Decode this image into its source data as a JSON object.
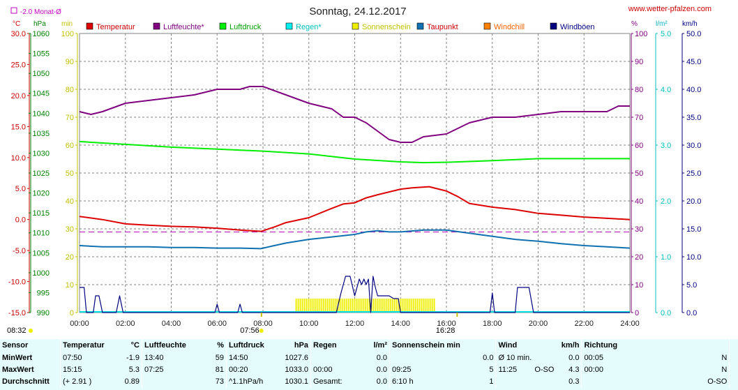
{
  "header": {
    "title": "Sonntag, 24.12.2017",
    "site": "www.wetter-pfalzen.com",
    "monat_legend": "-2.0 Monat-Ø",
    "unit_c": "°C",
    "unit_hpa": "hPa",
    "unit_min": "min",
    "unit_pct": "%",
    "unit_lm2": "l/m²",
    "unit_kmh": "km/h"
  },
  "legend": [
    {
      "label": "Temperatur",
      "color": "#dd0000"
    },
    {
      "label": "Luftfeuchte*",
      "color": "#800080"
    },
    {
      "label": "Luftdruck",
      "color": "#00ee00"
    },
    {
      "label": "Regen*",
      "color": "#00eeee"
    },
    {
      "label": "Sonnenschein",
      "color": "#eeee00"
    },
    {
      "label": "Taupunkt",
      "color": "#1070b0"
    },
    {
      "label": "Windchill",
      "color": "#ff8000"
    },
    {
      "label": "Windböen",
      "color": "#000080"
    }
  ],
  "markers": {
    "sunrise": "08:32",
    "min_temp_time": "07:56",
    "sun_end": "16:28"
  },
  "chart_data": {
    "type": "line",
    "title": "Sonntag, 24.12.2017",
    "x_ticks": [
      "00:00",
      "02:00",
      "04:00",
      "06:00",
      "08:00",
      "10:00",
      "12:00",
      "14:00",
      "16:00",
      "18:00",
      "20:00",
      "22:00",
      "24:00"
    ],
    "x_range_hours": [
      0,
      24
    ],
    "axes": {
      "temp_c": {
        "range": [
          -15,
          30
        ],
        "ticks": [
          "30.0",
          "25.0",
          "20.0",
          "15.0",
          "10.0",
          "5.0",
          "0.0",
          "-5.0",
          "-10.0",
          "-15.0"
        ]
      },
      "pressure_hpa": {
        "range": [
          990,
          1060
        ],
        "ticks": [
          "1060",
          "1055",
          "1050",
          "1045",
          "1040",
          "1035",
          "1030",
          "1025",
          "1020",
          "1015",
          "1010",
          "1005",
          "1000",
          "995",
          "990"
        ]
      },
      "sun_min": {
        "range": [
          0,
          100
        ],
        "ticks": [
          "100",
          "90",
          "80",
          "70",
          "60",
          "50",
          "40",
          "30",
          "20",
          "10",
          "0"
        ]
      },
      "humidity_pct": {
        "range": [
          0,
          100
        ],
        "ticks": [
          "100",
          "90",
          "80",
          "70",
          "60",
          "50",
          "40",
          "30",
          "20",
          "10",
          "0"
        ]
      },
      "rain_lm2": {
        "range": [
          0,
          5
        ],
        "ticks": [
          "5.0",
          "4.0",
          "3.0",
          "2.0",
          "1.0",
          "0.0"
        ]
      },
      "wind_kmh": {
        "range": [
          0,
          50
        ],
        "ticks": [
          "50.0",
          "45.0",
          "40.0",
          "35.0",
          "30.0",
          "25.0",
          "20.0",
          "15.0",
          "10.0",
          "5.0",
          "0.0"
        ]
      }
    },
    "monthly_avg_temp": -2.0,
    "series": [
      {
        "name": "Temperatur",
        "axis": "temp_c",
        "color": "#dd0000",
        "x": [
          0,
          1,
          2,
          3,
          4,
          5,
          6,
          7,
          7.93,
          8.5,
          9,
          10,
          11,
          11.5,
          12,
          12.5,
          13,
          14,
          14.5,
          15.25,
          16,
          16.5,
          17,
          18,
          19,
          20,
          21,
          22,
          23,
          24
        ],
        "y": [
          0.5,
          0,
          -0.7,
          -0.9,
          -1.1,
          -1.2,
          -1.4,
          -1.7,
          -1.9,
          -1.2,
          -0.5,
          0.3,
          1.8,
          2.5,
          2.7,
          3.5,
          4.0,
          4.9,
          5.1,
          5.3,
          4.6,
          3.7,
          2.6,
          2.0,
          1.6,
          1.0,
          0.7,
          0.4,
          0.2,
          0.0
        ]
      },
      {
        "name": "Luftfeuchte*",
        "axis": "humidity_pct",
        "color": "#800080",
        "x": [
          0,
          0.5,
          1,
          2,
          3,
          4,
          5,
          6,
          7,
          7.42,
          8,
          9,
          10,
          11,
          11.5,
          12,
          12.5,
          13,
          13.5,
          14,
          14.5,
          15,
          16,
          17,
          18,
          19,
          20,
          21,
          22,
          23,
          23.5,
          24
        ],
        "y": [
          72,
          71,
          72,
          75,
          76,
          77,
          78,
          80,
          80,
          81,
          81,
          78,
          75,
          73,
          70,
          70,
          68,
          65,
          62,
          61,
          61,
          63,
          64,
          68,
          70,
          70,
          71,
          72,
          72,
          72,
          74,
          74
        ]
      },
      {
        "name": "Luftdruck",
        "axis": "pressure_hpa",
        "color": "#00ee00",
        "x": [
          0,
          2,
          4,
          6,
          8,
          10,
          12,
          14,
          15,
          16,
          18,
          20,
          22,
          24
        ],
        "y": [
          1032.9,
          1032.2,
          1031.5,
          1031.0,
          1030.5,
          1029.8,
          1028.5,
          1027.8,
          1027.6,
          1027.7,
          1028.1,
          1028.6,
          1028.6,
          1028.6
        ]
      },
      {
        "name": "Taupunkt",
        "axis": "temp_c",
        "color": "#1070b0",
        "x": [
          0,
          1,
          2,
          3,
          4,
          5,
          6,
          7,
          7.9,
          8.5,
          9,
          10,
          11,
          12,
          12.5,
          13,
          13.5,
          14,
          15,
          16,
          17,
          18,
          19,
          20,
          21,
          22,
          23,
          24
        ],
        "y": [
          -4.2,
          -4.4,
          -4.4,
          -4.4,
          -4.5,
          -4.5,
          -4.6,
          -4.6,
          -4.7,
          -4.2,
          -3.8,
          -3.2,
          -2.8,
          -2.4,
          -2.0,
          -1.8,
          -2.0,
          -2.0,
          -1.7,
          -1.7,
          -2.2,
          -2.7,
          -3.2,
          -3.5,
          -3.9,
          -4.2,
          -4.4,
          -4.6
        ]
      },
      {
        "name": "Windböen",
        "axis": "wind_kmh",
        "color": "#000080",
        "x": [
          0,
          0.1,
          0.2,
          0.3,
          0.5,
          0.6,
          0.7,
          0.85,
          1,
          1.5,
          1.6,
          1.75,
          1.9,
          2,
          5.9,
          6,
          6.1,
          6.9,
          7,
          7.1,
          11.2,
          11.4,
          11.6,
          11.8,
          12,
          12.2,
          12.3,
          12.4,
          12.5,
          12.6,
          12.7,
          12.8,
          12.9,
          13,
          13.1,
          13.2,
          13.3,
          13.4,
          13.5,
          13.7,
          13.9,
          14,
          17.9,
          18,
          18.1,
          18.3,
          19,
          19.1,
          19.5,
          19.6,
          19.8,
          19.9,
          24
        ],
        "y": [
          4.5,
          4.5,
          4.5,
          0,
          0,
          0,
          3,
          3,
          0,
          0,
          0,
          3,
          0,
          0,
          0,
          1.5,
          0,
          0,
          1.5,
          0,
          0,
          3.5,
          6.5,
          6.5,
          3,
          6,
          5,
          6,
          5,
          6,
          0,
          6.5,
          4.5,
          3,
          3,
          3,
          3,
          3,
          3,
          2.5,
          2.5,
          0,
          0,
          3.5,
          0,
          0,
          0,
          4.5,
          4.5,
          4.5,
          0,
          0,
          0
        ]
      }
    ],
    "sunshine": {
      "name": "Sonnenschein",
      "axis": "sun_min",
      "color": "#eeee00",
      "start": "09:25",
      "end": "15:30",
      "value_min": 5
    }
  },
  "table": {
    "headers": [
      "Sensor",
      "Temperatur",
      "°C",
      "Luftfeuchte",
      "%",
      "Luftdruck",
      "hPa",
      "Regen",
      "l/m²",
      "Sonnenschein min",
      "Wind",
      "km/h",
      "Richtung"
    ],
    "rows": [
      {
        "label": "MinWert",
        "t_time": "07:50",
        "t_val": "-1.9",
        "h_time": "13:40",
        "h_val": "59",
        "p_time": "14:50",
        "p_val": "1027.6",
        "r_time": "",
        "r_val": "",
        "s_time": "",
        "s_val": "",
        "w_time": "Ø 10 min.",
        "w_val": "0.0",
        "d_time": "00:05",
        "d_val": "N"
      },
      {
        "label": "MaxWert",
        "t_time": "15:15",
        "t_val": "5.3",
        "h_time": "07:25",
        "h_val": "81",
        "p_time": "00:20",
        "p_val": "1033.0",
        "r_time": "00:00",
        "r_val": "0.0",
        "s_time": "09:25",
        "s_val": "5",
        "w_time": "11:25",
        "w_dir": "O-SO",
        "w_val": "4.3",
        "d_time": "00:00",
        "d_val": "N"
      },
      {
        "label": "Durchschnitt",
        "t_time": "(+ 2.91 )",
        "t_val": "0.89",
        "h_time": "",
        "h_val": "73",
        "p_time": "^1.1hPa/h",
        "p_val": "1030.1",
        "r_time": "Gesamt:",
        "r_val": "0.0",
        "s_time": "6:10 h",
        "s_val": "1",
        "w_time": "",
        "w_val": "0.3",
        "d_time": "",
        "d_val": "O-SO"
      }
    ],
    "extra_min": {
      "regen": "0.0",
      "sonne": "0.0"
    }
  }
}
